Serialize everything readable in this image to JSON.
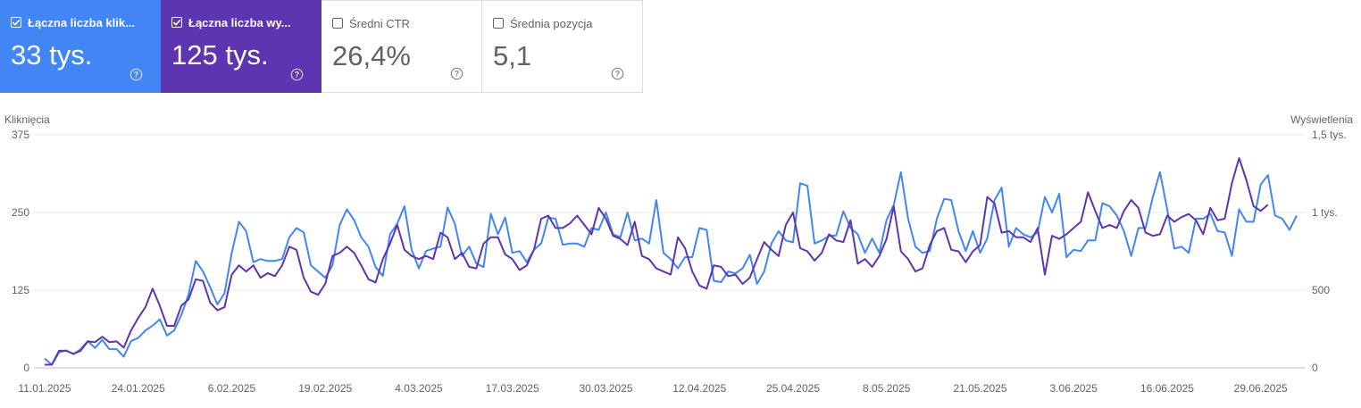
{
  "metrics": [
    {
      "label": "Łączna liczba klik...",
      "value": "33 tys.",
      "selected": true,
      "color": "#4285f4"
    },
    {
      "label": "Łączna liczba wy...",
      "value": "125 tys.",
      "selected": true,
      "color": "#5e35b1"
    },
    {
      "label": "Średni CTR",
      "value": "26,4%",
      "selected": false
    },
    {
      "label": "Średnia pozycja",
      "value": "5,1",
      "selected": false
    }
  ],
  "chart_data": {
    "type": "line",
    "left_axis_label": "Kliknięcia",
    "right_axis_label": "Wyświetlenia",
    "left_ticks": [
      "375",
      "250",
      "125",
      "0"
    ],
    "right_ticks": [
      "1,5 tys.",
      "1 tys.",
      "500",
      "0"
    ],
    "left_ylim": [
      0,
      375
    ],
    "right_ylim": [
      0,
      1500
    ],
    "x_tick_labels": [
      "11.01.2025",
      "24.01.2025",
      "6.02.2025",
      "19.02.2025",
      "4.03.2025",
      "17.03.2025",
      "30.03.2025",
      "12.04.2025",
      "25.04.2025",
      "8.05.2025",
      "21.05.2025",
      "3.06.2025",
      "16.06.2025",
      "29.06.2025"
    ],
    "x_tick_day_index": [
      0,
      13,
      26,
      39,
      52,
      65,
      78,
      91,
      104,
      117,
      130,
      143,
      156,
      169
    ],
    "grid": true,
    "series": [
      {
        "name": "Kliknięcia",
        "axis": "left",
        "color": "#4285f4",
        "values": [
          15,
          5,
          25,
          28,
          22,
          30,
          43,
          32,
          45,
          30,
          30,
          18,
          43,
          48,
          60,
          68,
          78,
          52,
          60,
          85,
          118,
          172,
          155,
          130,
          102,
          120,
          185,
          235,
          220,
          170,
          175,
          172,
          172,
          175,
          210,
          225,
          218,
          165,
          155,
          145,
          165,
          230,
          255,
          238,
          210,
          195,
          162,
          148,
          215,
          232,
          260,
          190,
          160,
          188,
          192,
          195,
          258,
          232,
          180,
          195,
          168,
          162,
          248,
          215,
          242,
          185,
          188,
          170,
          190,
          200,
          242,
          240,
          198,
          200,
          200,
          195,
          225,
          222,
          250,
          215,
          210,
          250,
          205,
          208,
          200,
          270,
          185,
          175,
          160,
          178,
          178,
          225,
          222,
          140,
          138,
          155,
          152,
          160,
          182,
          135,
          155,
          200,
          220,
          205,
          202,
          297,
          293,
          200,
          205,
          212,
          213,
          252,
          225,
          215,
          185,
          208,
          185,
          238,
          262,
          315,
          240,
          195,
          185,
          188,
          240,
          272,
          270,
          220,
          188,
          220,
          185,
          208,
          270,
          290,
          195,
          225,
          215,
          210,
          218,
          275,
          250,
          280,
          178,
          190,
          188,
          205,
          205,
          265,
          260,
          245,
          220,
          180,
          225,
          225,
          275,
          315,
          255,
          192,
          195,
          185,
          240,
          240,
          248,
          220,
          218,
          180,
          255,
          235,
          235,
          295,
          310,
          245,
          240,
          222,
          245
        ]
      },
      {
        "name": "Wyświetlenia",
        "axis": "right",
        "color": "#5e35b1",
        "values": [
          20,
          20,
          110,
          110,
          90,
          110,
          170,
          165,
          200,
          165,
          170,
          130,
          240,
          320,
          390,
          510,
          400,
          270,
          270,
          400,
          440,
          570,
          560,
          420,
          370,
          390,
          600,
          660,
          620,
          660,
          580,
          610,
          590,
          660,
          780,
          760,
          580,
          490,
          470,
          540,
          720,
          740,
          780,
          740,
          660,
          570,
          550,
          700,
          800,
          920,
          760,
          720,
          700,
          720,
          700,
          870,
          840,
          700,
          740,
          650,
          640,
          800,
          840,
          840,
          730,
          700,
          630,
          660,
          760,
          960,
          980,
          900,
          900,
          930,
          980,
          920,
          860,
          1030,
          960,
          850,
          830,
          790,
          940,
          720,
          700,
          640,
          620,
          600,
          840,
          770,
          620,
          530,
          510,
          660,
          650,
          590,
          600,
          540,
          580,
          700,
          810,
          760,
          720,
          920,
          1000,
          770,
          750,
          690,
          740,
          860,
          820,
          810,
          950,
          670,
          700,
          650,
          720,
          830,
          1040,
          750,
          700,
          620,
          640,
          790,
          880,
          900,
          760,
          750,
          680,
          750,
          790,
          1100,
          1060,
          870,
          880,
          840,
          840,
          810,
          900,
          600,
          850,
          830,
          860,
          900,
          940,
          1130,
          1010,
          900,
          920,
          900,
          1010,
          1080,
          1030,
          870,
          850,
          860,
          980,
          940,
          970,
          990,
          950,
          860,
          1030,
          950,
          960,
          1190,
          1350,
          1210,
          1040,
          1010,
          1050
        ]
      }
    ]
  }
}
